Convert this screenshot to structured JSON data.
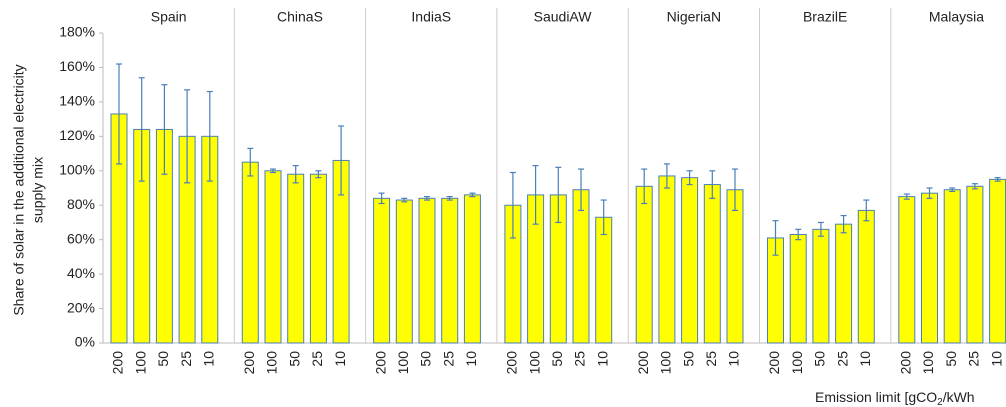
{
  "chart_data": {
    "type": "bar",
    "y_label": [
      "Share of solar in the additional electricity",
      "supply mix"
    ],
    "x_label": "Emission limit [gCO",
    "x_label_sub": "2",
    "x_label_end": "/kWh",
    "categories": [
      "200",
      "100",
      "50",
      "25",
      "10"
    ],
    "panels": [
      {
        "name": "Spain",
        "values": [
          133,
          124,
          124,
          120,
          120
        ],
        "errors": [
          29,
          30,
          26,
          27,
          26
        ]
      },
      {
        "name": "ChinaS",
        "values": [
          105,
          100,
          98,
          98,
          106
        ],
        "errors": [
          8,
          1,
          5,
          2,
          20
        ]
      },
      {
        "name": "IndiaS",
        "values": [
          84,
          83,
          84,
          84,
          86
        ],
        "errors": [
          3,
          1,
          1,
          1,
          1
        ]
      },
      {
        "name": "SaudiAW",
        "values": [
          80,
          86,
          86,
          89,
          73
        ],
        "errors": [
          19,
          17,
          16,
          12,
          10
        ]
      },
      {
        "name": "NigeriaN",
        "values": [
          91,
          97,
          96,
          92,
          89
        ],
        "errors": [
          10,
          7,
          4,
          8,
          12
        ]
      },
      {
        "name": "BrazilE",
        "values": [
          61,
          63,
          66,
          69,
          77
        ],
        "errors": [
          10,
          3,
          4,
          5,
          6
        ]
      },
      {
        "name": "Malaysia",
        "values": [
          85,
          87,
          89,
          91,
          95
        ],
        "errors": [
          1.5,
          3,
          1,
          1.5,
          1
        ]
      }
    ],
    "color": "#ffff00",
    "edge_color": "#4a7ebb",
    "ylim": [
      0,
      180
    ],
    "yticks": [
      {
        "value": 0,
        "label": "0%"
      },
      {
        "value": 20,
        "label": "20%"
      },
      {
        "value": 40,
        "label": "40%"
      },
      {
        "value": 60,
        "label": "60%"
      },
      {
        "value": 80,
        "label": "80%"
      },
      {
        "value": 100,
        "label": "100%"
      },
      {
        "value": 120,
        "label": "120%"
      },
      {
        "value": 140,
        "label": "140%"
      },
      {
        "value": 160,
        "label": "160%"
      },
      {
        "value": 180,
        "label": "180%"
      }
    ]
  }
}
